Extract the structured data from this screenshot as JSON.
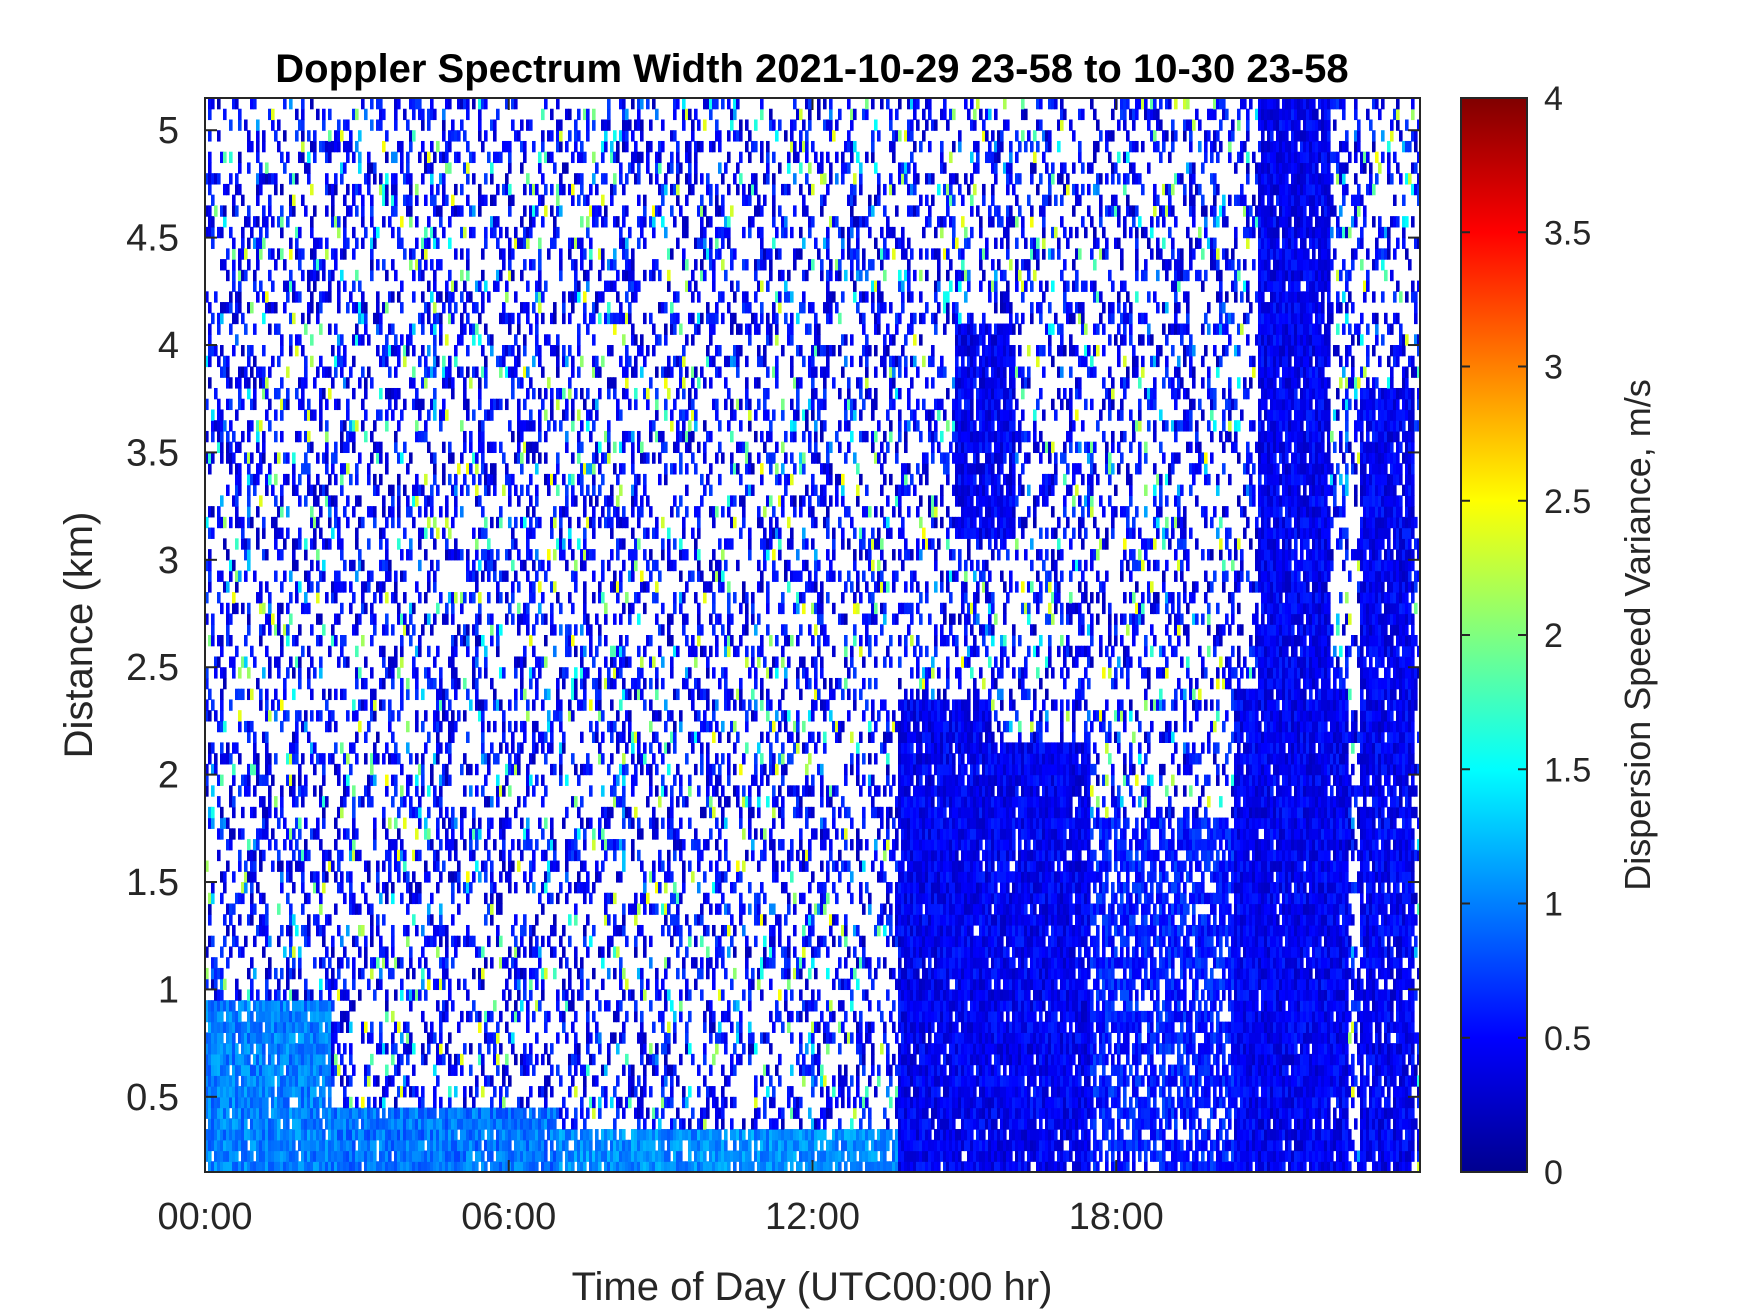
{
  "chart_data": {
    "type": "heatmap",
    "title": "Doppler Spectrum Width 2021-10-29 23-58 to 10-30 23-58",
    "xlabel": "Time of Day (UTC00:00 hr)",
    "ylabel": "Distance (km)",
    "colorbar_label": "Dispersion Speed Variance, m/s",
    "colormap": "jet",
    "xlim_hours": [
      0,
      24
    ],
    "ylim_km": [
      0.15,
      5.15
    ],
    "clim": [
      0,
      4
    ],
    "x_ticks": [
      {
        "value": 0,
        "label": "00:00"
      },
      {
        "value": 6,
        "label": "06:00"
      },
      {
        "value": 12,
        "label": "12:00"
      },
      {
        "value": 18,
        "label": "18:00"
      }
    ],
    "y_ticks": [
      {
        "value": 0.5,
        "label": "0.5"
      },
      {
        "value": 1,
        "label": "1"
      },
      {
        "value": 1.5,
        "label": "1.5"
      },
      {
        "value": 2,
        "label": "2"
      },
      {
        "value": 2.5,
        "label": "2.5"
      },
      {
        "value": 3,
        "label": "3"
      },
      {
        "value": 3.5,
        "label": "3.5"
      },
      {
        "value": 4,
        "label": "4"
      },
      {
        "value": 4.5,
        "label": "4.5"
      },
      {
        "value": 5,
        "label": "5"
      }
    ],
    "colorbar_ticks": [
      {
        "value": 0,
        "label": "0"
      },
      {
        "value": 0.5,
        "label": "0.5"
      },
      {
        "value": 1,
        "label": "1"
      },
      {
        "value": 1.5,
        "label": "1.5"
      },
      {
        "value": 2,
        "label": "2"
      },
      {
        "value": 2.5,
        "label": "2.5"
      },
      {
        "value": 3,
        "label": "3"
      },
      {
        "value": 3.5,
        "label": "3.5"
      },
      {
        "value": 4,
        "label": "4"
      }
    ],
    "regions": [
      {
        "t": [
          0,
          2.5
        ],
        "d": [
          0.15,
          0.95
        ],
        "value": 1.0,
        "coverage": 0.92
      },
      {
        "t": [
          2.5,
          7.0
        ],
        "d": [
          0.15,
          0.45
        ],
        "value": 0.95,
        "coverage": 0.9
      },
      {
        "t": [
          7.0,
          13.7
        ],
        "d": [
          0.15,
          0.35
        ],
        "value": 1.05,
        "coverage": 0.88
      },
      {
        "t": [
          13.7,
          15.5
        ],
        "d": [
          0.15,
          2.35
        ],
        "value": 0.45,
        "coverage": 0.95
      },
      {
        "t": [
          14.8,
          16.0
        ],
        "d": [
          3.1,
          4.1
        ],
        "value": 0.45,
        "coverage": 0.9
      },
      {
        "t": [
          15.5,
          17.5
        ],
        "d": [
          0.15,
          2.15
        ],
        "value": 0.45,
        "coverage": 0.93
      },
      {
        "t": [
          17.5,
          20.3
        ],
        "d": [
          0.15,
          1.8
        ],
        "value": 0.6,
        "coverage": 0.7
      },
      {
        "t": [
          20.3,
          22.6
        ],
        "d": [
          0.15,
          2.4
        ],
        "value": 0.45,
        "coverage": 0.97
      },
      {
        "t": [
          20.8,
          22.2
        ],
        "d": [
          2.4,
          5.15
        ],
        "value": 0.45,
        "coverage": 0.93
      },
      {
        "t": [
          22.8,
          23.9
        ],
        "d": [
          0.15,
          3.8
        ],
        "value": 0.45,
        "coverage": 0.9
      }
    ],
    "background": {
      "value": 0.6,
      "coverage": 0.32
    }
  }
}
